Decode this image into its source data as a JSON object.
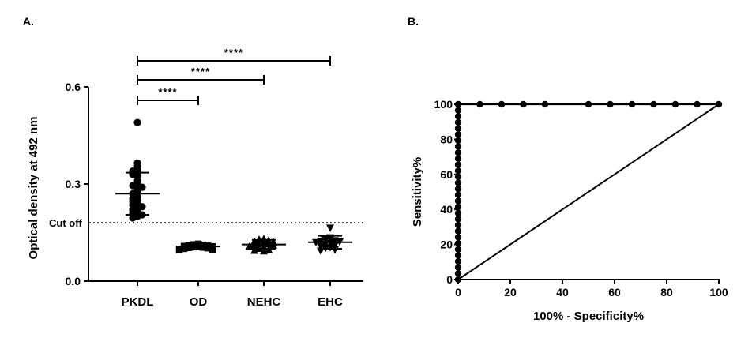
{
  "chart_data": [
    {
      "panel_label": "A.",
      "type": "scatter",
      "ylabel": "Optical density at 492 nm",
      "xlabel": "",
      "categories": [
        "PKDL",
        "OD",
        "NEHC",
        "EHC"
      ],
      "ylim": [
        0.0,
        0.6
      ],
      "y_ticks": [
        0.0,
        0.3,
        0.6
      ],
      "y_tick_labels": [
        "0.0",
        "0.3",
        "0.6"
      ],
      "cutoff": {
        "label": "Cut off",
        "value": 0.18
      },
      "series": [
        {
          "category": "PKDL",
          "marker": "circle",
          "values": [
            0.49,
            0.365,
            0.355,
            0.345,
            0.34,
            0.335,
            0.33,
            0.325,
            0.31,
            0.3,
            0.295,
            0.29,
            0.285,
            0.275,
            0.27,
            0.26,
            0.255,
            0.25,
            0.245,
            0.24,
            0.235,
            0.23,
            0.225,
            0.22,
            0.215,
            0.21,
            0.205,
            0.2,
            0.195
          ],
          "mean": 0.27,
          "sd_low": 0.205,
          "sd_high": 0.335
        },
        {
          "category": "OD",
          "marker": "square",
          "values": [
            0.115,
            0.113,
            0.112,
            0.11,
            0.109,
            0.108,
            0.107,
            0.106,
            0.105,
            0.104,
            0.103,
            0.102,
            0.1,
            0.098,
            0.097
          ],
          "mean": 0.107,
          "sd_low": 0.1,
          "sd_high": 0.114
        },
        {
          "category": "NEHC",
          "marker": "triangle-up",
          "values": [
            0.13,
            0.128,
            0.125,
            0.122,
            0.12,
            0.118,
            0.116,
            0.114,
            0.112,
            0.11,
            0.107,
            0.104,
            0.1,
            0.097,
            0.094,
            0.092
          ],
          "mean": 0.113,
          "sd_low": 0.1,
          "sd_high": 0.127
        },
        {
          "category": "EHC",
          "marker": "triangle-down",
          "values": [
            0.165,
            0.135,
            0.132,
            0.13,
            0.128,
            0.126,
            0.124,
            0.122,
            0.12,
            0.118,
            0.115,
            0.112,
            0.108,
            0.105,
            0.102,
            0.098,
            0.094
          ],
          "mean": 0.12,
          "sd_low": 0.1,
          "sd_high": 0.14
        }
      ],
      "significance": [
        {
          "from": "PKDL",
          "to": "OD",
          "label": "****"
        },
        {
          "from": "PKDL",
          "to": "NEHC",
          "label": "****"
        },
        {
          "from": "PKDL",
          "to": "EHC",
          "label": "****"
        }
      ]
    },
    {
      "panel_label": "B.",
      "type": "line",
      "xlabel": "100% - Specificity%",
      "ylabel": "Sensitivity%",
      "xlim": [
        0,
        100
      ],
      "ylim": [
        0,
        100
      ],
      "x_ticks": [
        0,
        20,
        40,
        60,
        80,
        100
      ],
      "y_ticks": [
        0,
        20,
        40,
        60,
        80,
        100
      ],
      "roc_curve": {
        "x": [
          0,
          0,
          0,
          0,
          0,
          0,
          0,
          0,
          0,
          0,
          0,
          0,
          0,
          0,
          0,
          0,
          0,
          0,
          0,
          0,
          0,
          0,
          0,
          0,
          0,
          0,
          0,
          0,
          0,
          0,
          8.33,
          16.67,
          25,
          33.33,
          50,
          58.33,
          66.67,
          75,
          83.33,
          91.67,
          100
        ],
        "y": [
          0,
          3.45,
          6.9,
          10.34,
          13.79,
          17.24,
          20.69,
          24.14,
          27.59,
          31.03,
          34.48,
          37.93,
          41.38,
          44.83,
          48.28,
          51.72,
          55.17,
          58.62,
          62.07,
          65.52,
          68.97,
          72.41,
          75.86,
          79.31,
          82.76,
          86.21,
          89.66,
          93.1,
          96.55,
          100,
          100,
          100,
          100,
          100,
          100,
          100,
          100,
          100,
          100,
          100,
          100
        ]
      },
      "reference_line": {
        "x": [
          0,
          100
        ],
        "y": [
          0,
          100
        ]
      }
    }
  ]
}
